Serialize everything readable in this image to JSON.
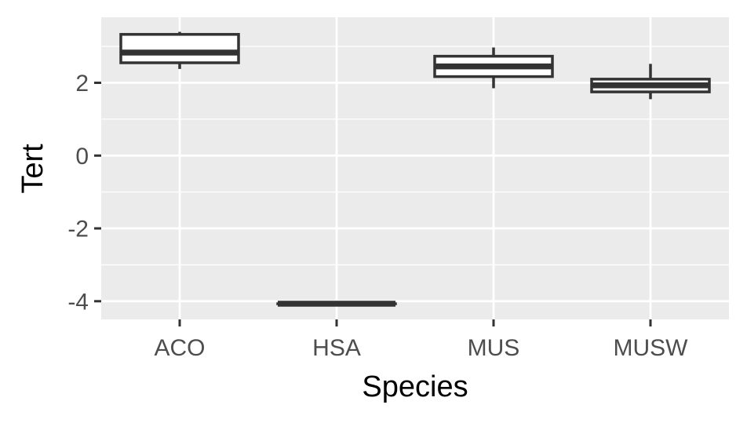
{
  "chart_data": {
    "type": "boxplot",
    "title": "",
    "xlabel": "Species",
    "ylabel": "Tert",
    "categories": [
      "ACO",
      "HSA",
      "MUS",
      "MUSW"
    ],
    "boxes": [
      {
        "category": "ACO",
        "min": 2.38,
        "q1": 2.55,
        "median": 2.83,
        "q3": 3.33,
        "max": 3.4
      },
      {
        "category": "HSA",
        "min": -4.07,
        "q1": -4.07,
        "median": -4.07,
        "q3": -4.07,
        "max": -4.07
      },
      {
        "category": "MUS",
        "min": 1.85,
        "q1": 2.17,
        "median": 2.45,
        "q3": 2.73,
        "max": 2.97
      },
      {
        "category": "MUSW",
        "min": 1.55,
        "q1": 1.75,
        "median": 1.93,
        "q3": 2.1,
        "max": 2.52
      }
    ],
    "ylim": [
      -4.5,
      3.8
    ],
    "yticks": [
      -4,
      -2,
      0,
      2
    ],
    "ytick_labels": [
      "-4",
      "-2",
      "0",
      "2"
    ],
    "grid": true,
    "colors": {
      "panel": "#ebebeb",
      "grid": "#ffffff",
      "box_line": "#333333",
      "box_fill": "#ffffff",
      "tick": "#333333"
    }
  }
}
